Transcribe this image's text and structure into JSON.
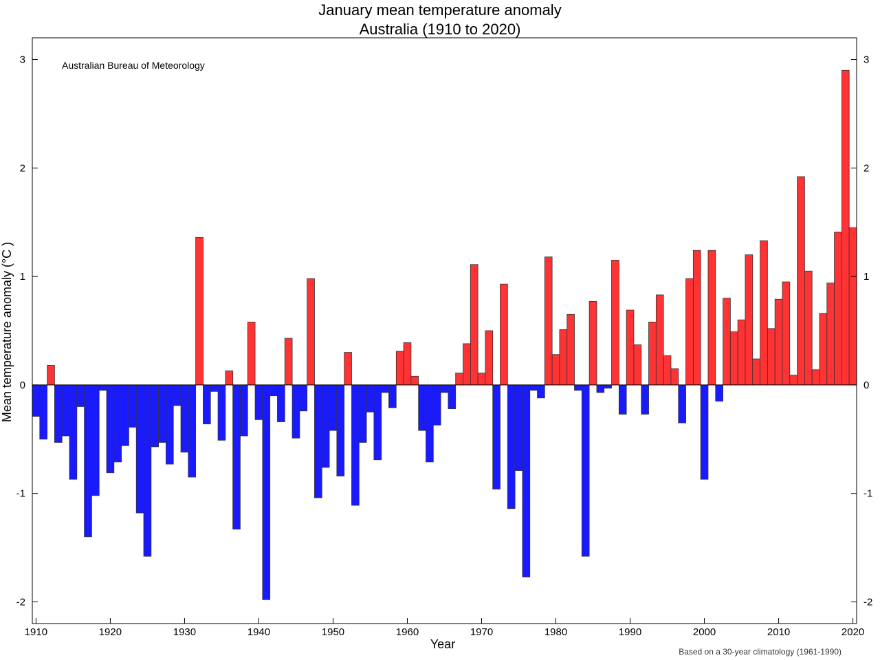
{
  "chart_data": {
    "type": "bar",
    "title": "January mean temperature anomaly",
    "subtitle": "Australia (1910 to 2020)",
    "xlabel": "Year",
    "ylabel": "Mean temperature anomaly (°C )",
    "credit": "Australian Bureau of Meteorology",
    "footnote": "Based on a 30-year climatology (1961-1990)",
    "xlim": [
      1909.5,
      2020.5
    ],
    "ylim": [
      -2.2,
      3.2
    ],
    "x_ticks": [
      1910,
      1920,
      1930,
      1940,
      1950,
      1960,
      1970,
      1980,
      1990,
      2000,
      2010,
      2020
    ],
    "y_ticks": [
      -2,
      -1,
      0,
      1,
      2,
      3
    ],
    "colors": {
      "positive": "#ff3333",
      "negative": "#1a1aff",
      "outline": "#333333"
    },
    "grid": false,
    "x": [
      1910,
      1911,
      1912,
      1913,
      1914,
      1915,
      1916,
      1917,
      1918,
      1919,
      1920,
      1921,
      1922,
      1923,
      1924,
      1925,
      1926,
      1927,
      1928,
      1929,
      1930,
      1931,
      1932,
      1933,
      1934,
      1935,
      1936,
      1937,
      1938,
      1939,
      1940,
      1941,
      1942,
      1943,
      1944,
      1945,
      1946,
      1947,
      1948,
      1949,
      1950,
      1951,
      1952,
      1953,
      1954,
      1955,
      1956,
      1957,
      1958,
      1959,
      1960,
      1961,
      1962,
      1963,
      1964,
      1965,
      1966,
      1967,
      1968,
      1969,
      1970,
      1971,
      1972,
      1973,
      1974,
      1975,
      1976,
      1977,
      1978,
      1979,
      1980,
      1981,
      1982,
      1983,
      1984,
      1985,
      1986,
      1987,
      1988,
      1989,
      1990,
      1991,
      1992,
      1993,
      1994,
      1995,
      1996,
      1997,
      1998,
      1999,
      2000,
      2001,
      2002,
      2003,
      2004,
      2005,
      2006,
      2007,
      2008,
      2009,
      2010,
      2011,
      2012,
      2013,
      2014,
      2015,
      2016,
      2017,
      2018,
      2019,
      2020
    ],
    "values": [
      -0.29,
      -0.5,
      0.18,
      -0.53,
      -0.47,
      -0.87,
      -0.2,
      -1.4,
      -1.02,
      -0.05,
      -0.81,
      -0.71,
      -0.56,
      -0.39,
      -1.18,
      -1.58,
      -0.57,
      -0.53,
      -0.73,
      -0.19,
      -0.62,
      -0.85,
      1.36,
      -0.36,
      -0.06,
      -0.51,
      0.13,
      -1.33,
      -0.47,
      0.58,
      -0.32,
      -1.98,
      -0.1,
      -0.34,
      0.43,
      -0.49,
      -0.24,
      0.98,
      -1.04,
      -0.76,
      -0.42,
      -0.84,
      0.3,
      -1.11,
      -0.53,
      -0.25,
      -0.69,
      -0.07,
      -0.21,
      0.31,
      0.39,
      0.08,
      -0.42,
      -0.71,
      -0.37,
      -0.07,
      -0.22,
      0.11,
      0.38,
      1.11,
      0.11,
      0.5,
      -0.96,
      0.93,
      -1.14,
      -0.79,
      -1.77,
      -0.05,
      -0.12,
      1.18,
      0.28,
      0.51,
      0.65,
      -0.05,
      -1.58,
      0.77,
      -0.07,
      -0.03,
      1.15,
      -0.27,
      0.69,
      0.37,
      -0.27,
      0.58,
      0.83,
      0.27,
      0.15,
      -0.35,
      0.98,
      1.24,
      -0.87,
      1.24,
      -0.15,
      0.8,
      0.49,
      0.6,
      1.2,
      0.24,
      1.33,
      0.52,
      0.79,
      0.95,
      0.09,
      1.92,
      1.05,
      0.14,
      0.66,
      0.94,
      1.41,
      2.9,
      1.45
    ]
  }
}
